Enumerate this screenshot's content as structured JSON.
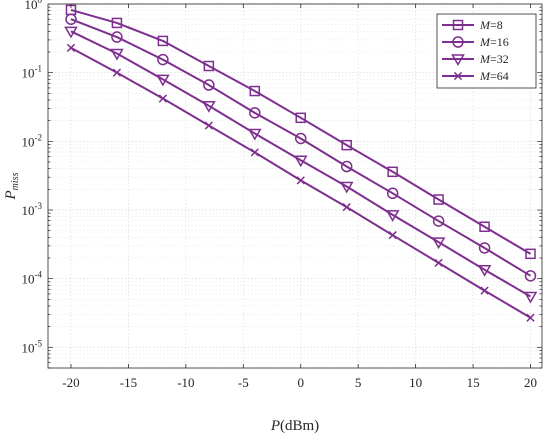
{
  "chart_data": {
    "type": "line",
    "xlabel": {
      "italic": "P",
      "rest": "(dBm)"
    },
    "ylabel": {
      "main": "P",
      "sub": "miss"
    },
    "xlim": [
      -22,
      21
    ],
    "ylim": [
      5e-06,
      1
    ],
    "yscale": "log",
    "grid": true,
    "legend_position": "top-right",
    "line_color": "#7d2e8e",
    "x_ticks": [
      "-20",
      "-15",
      "-10",
      "-5",
      "0",
      "5",
      "10",
      "15",
      "20"
    ],
    "x_tick_values": [
      -20,
      -15,
      -10,
      -5,
      0,
      5,
      10,
      15,
      20
    ],
    "y_ticks": [
      {
        "value": 1,
        "base": "10",
        "exp": "0"
      },
      {
        "value": 0.1,
        "base": "10",
        "exp": "-1"
      },
      {
        "value": 0.01,
        "base": "10",
        "exp": "-2"
      },
      {
        "value": 0.001,
        "base": "10",
        "exp": "-3"
      },
      {
        "value": 0.0001,
        "base": "10",
        "exp": "-4"
      },
      {
        "value": 1e-05,
        "base": "10",
        "exp": "-5"
      }
    ],
    "x": [
      -20,
      -16,
      -12,
      -8,
      -4,
      0,
      4,
      8,
      12,
      16,
      20
    ],
    "series": [
      {
        "name_var": "M",
        "name_val": "=8",
        "marker": "square",
        "values": [
          0.82,
          0.53,
          0.29,
          0.125,
          0.054,
          0.022,
          0.0088,
          0.0036,
          0.00142,
          0.00057,
          0.00023
        ]
      },
      {
        "name_var": "M",
        "name_val": "=16",
        "marker": "circle",
        "values": [
          0.6,
          0.33,
          0.155,
          0.066,
          0.026,
          0.011,
          0.0043,
          0.00175,
          0.00069,
          0.00028,
          0.00011
        ]
      },
      {
        "name_var": "M",
        "name_val": "=32",
        "marker": "triangle-down",
        "values": [
          0.4,
          0.19,
          0.08,
          0.033,
          0.013,
          0.0053,
          0.0022,
          0.00085,
          0.00034,
          0.000135,
          5.5e-05
        ]
      },
      {
        "name_var": "M",
        "name_val": "=64",
        "marker": "x",
        "values": [
          0.23,
          0.1,
          0.042,
          0.017,
          0.0069,
          0.0027,
          0.0011,
          0.00043,
          0.00017,
          6.7e-05,
          2.7e-05
        ]
      }
    ]
  }
}
